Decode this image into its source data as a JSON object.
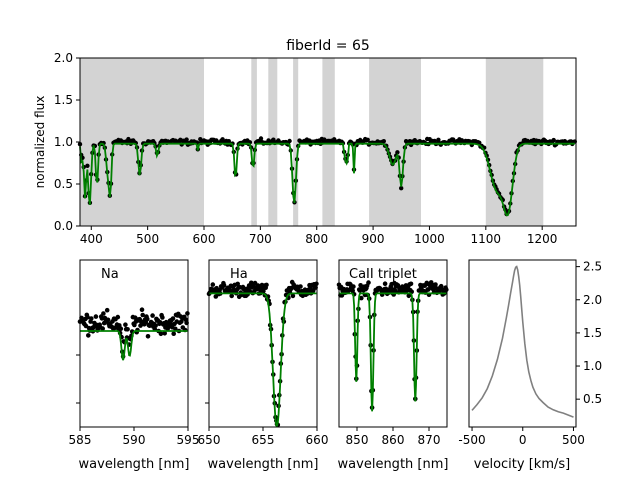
{
  "chart_data": [
    {
      "id": "main",
      "type": "scatter",
      "title": "fiberId = 65",
      "xlabel": "",
      "ylabel": "normalized flux",
      "xlim": [
        380,
        1260
      ],
      "ylim": [
        0.0,
        2.0
      ],
      "xticks": [
        400,
        500,
        600,
        700,
        800,
        900,
        1000,
        1100,
        1200
      ],
      "yticks": [
        0.0,
        0.5,
        1.0,
        1.5,
        2.0
      ],
      "yticklabels": [
        "0.0",
        "0.5",
        "1.0",
        "1.5",
        "2.0"
      ],
      "masked_ranges": [
        [
          380,
          600
        ],
        [
          684,
          694
        ],
        [
          714,
          730
        ],
        [
          758,
          767
        ],
        [
          810,
          832
        ],
        [
          893,
          985
        ],
        [
          1100,
          1202
        ]
      ],
      "continuum": 1.0,
      "absorption_lines": [
        {
          "x": 383,
          "depth": 0.25,
          "w": 1.5
        },
        {
          "x": 389,
          "depth": 0.65,
          "w": 2
        },
        {
          "x": 397,
          "depth": 0.75,
          "w": 2.5
        },
        {
          "x": 410,
          "depth": 0.5,
          "w": 2
        },
        {
          "x": 430,
          "depth": 0.4,
          "w": 3
        },
        {
          "x": 434,
          "depth": 0.45,
          "w": 2
        },
        {
          "x": 486,
          "depth": 0.38,
          "w": 2.5
        },
        {
          "x": 517,
          "depth": 0.15,
          "w": 2
        },
        {
          "x": 589,
          "depth": 0.08,
          "w": 1
        },
        {
          "x": 656,
          "depth": 0.42,
          "w": 2
        },
        {
          "x": 687,
          "depth": 0.3,
          "w": 2
        },
        {
          "x": 760,
          "depth": 0.72,
          "w": 3
        },
        {
          "x": 850,
          "depth": 0.28,
          "w": 1
        },
        {
          "x": 854,
          "depth": 0.38,
          "w": 1
        },
        {
          "x": 866,
          "depth": 0.36,
          "w": 1
        },
        {
          "x": 935,
          "depth": 0.25,
          "w": 6
        },
        {
          "x": 950,
          "depth": 0.5,
          "w": 3
        },
        {
          "x": 1120,
          "depth": 0.55,
          "w": 12
        },
        {
          "x": 1140,
          "depth": 0.7,
          "w": 8
        }
      ],
      "series": [
        {
          "color": "#000000",
          "marker": "circle"
        },
        {
          "color": "#008000",
          "marker": "line"
        }
      ]
    },
    {
      "id": "na",
      "type": "scatter",
      "annotation": "Na",
      "xlabel": "wavelength [nm]",
      "xlim": [
        585,
        595
      ],
      "xticks": [
        585,
        590,
        595
      ],
      "ylim": [
        0.75,
        1.15
      ],
      "absorption_lines": [
        {
          "x": 588.99,
          "depth": 0.07,
          "w": 0.15
        },
        {
          "x": 589.59,
          "depth": 0.06,
          "w": 0.15
        }
      ]
    },
    {
      "id": "ha",
      "type": "scatter",
      "annotation": "Ha",
      "xlabel": "wavelength [nm]",
      "xlim": [
        650,
        660
      ],
      "xticks": [
        650,
        655,
        660
      ],
      "ylim": [
        0.3,
        1.15
      ],
      "absorption_lines": [
        {
          "x": 656.28,
          "depth": 0.68,
          "w": 0.35
        }
      ]
    },
    {
      "id": "ca",
      "type": "scatter",
      "annotation": "CaII triplet",
      "xlabel": "wavelength [nm]",
      "xlim": [
        845,
        875
      ],
      "xticks": [
        850,
        860,
        870
      ],
      "ylim": [
        0.3,
        1.15
      ],
      "absorption_lines": [
        {
          "x": 849.8,
          "depth": 0.45,
          "w": 0.3
        },
        {
          "x": 854.2,
          "depth": 0.6,
          "w": 0.35
        },
        {
          "x": 866.2,
          "depth": 0.55,
          "w": 0.35
        }
      ]
    },
    {
      "id": "ccf",
      "type": "line",
      "xlabel": "velocity [km/s]",
      "xlim": [
        -530,
        525
      ],
      "ylim": [
        0.08,
        2.6
      ],
      "xticks": [
        -500,
        0,
        500
      ],
      "yticks": [
        0.5,
        1.0,
        1.5,
        2.0,
        2.5
      ],
      "yticklabels": [
        "0.5",
        "1.0",
        "1.5",
        "2.0",
        "2.5"
      ],
      "color": "#808080",
      "x": [
        -500,
        -450,
        -400,
        -350,
        -300,
        -250,
        -200,
        -180,
        -160,
        -140,
        -120,
        -100,
        -90,
        -80,
        -70,
        -60,
        -50,
        -40,
        -30,
        -20,
        -10,
        0,
        20,
        40,
        60,
        80,
        100,
        130,
        160,
        200,
        250,
        300,
        350,
        400,
        450,
        500
      ],
      "y": [
        0.33,
        0.42,
        0.52,
        0.66,
        0.85,
        1.1,
        1.42,
        1.58,
        1.74,
        1.92,
        2.1,
        2.27,
        2.36,
        2.44,
        2.49,
        2.5,
        2.45,
        2.35,
        2.22,
        2.05,
        1.86,
        1.66,
        1.34,
        1.09,
        0.91,
        0.78,
        0.68,
        0.58,
        0.51,
        0.45,
        0.38,
        0.34,
        0.31,
        0.29,
        0.26,
        0.23
      ]
    }
  ]
}
